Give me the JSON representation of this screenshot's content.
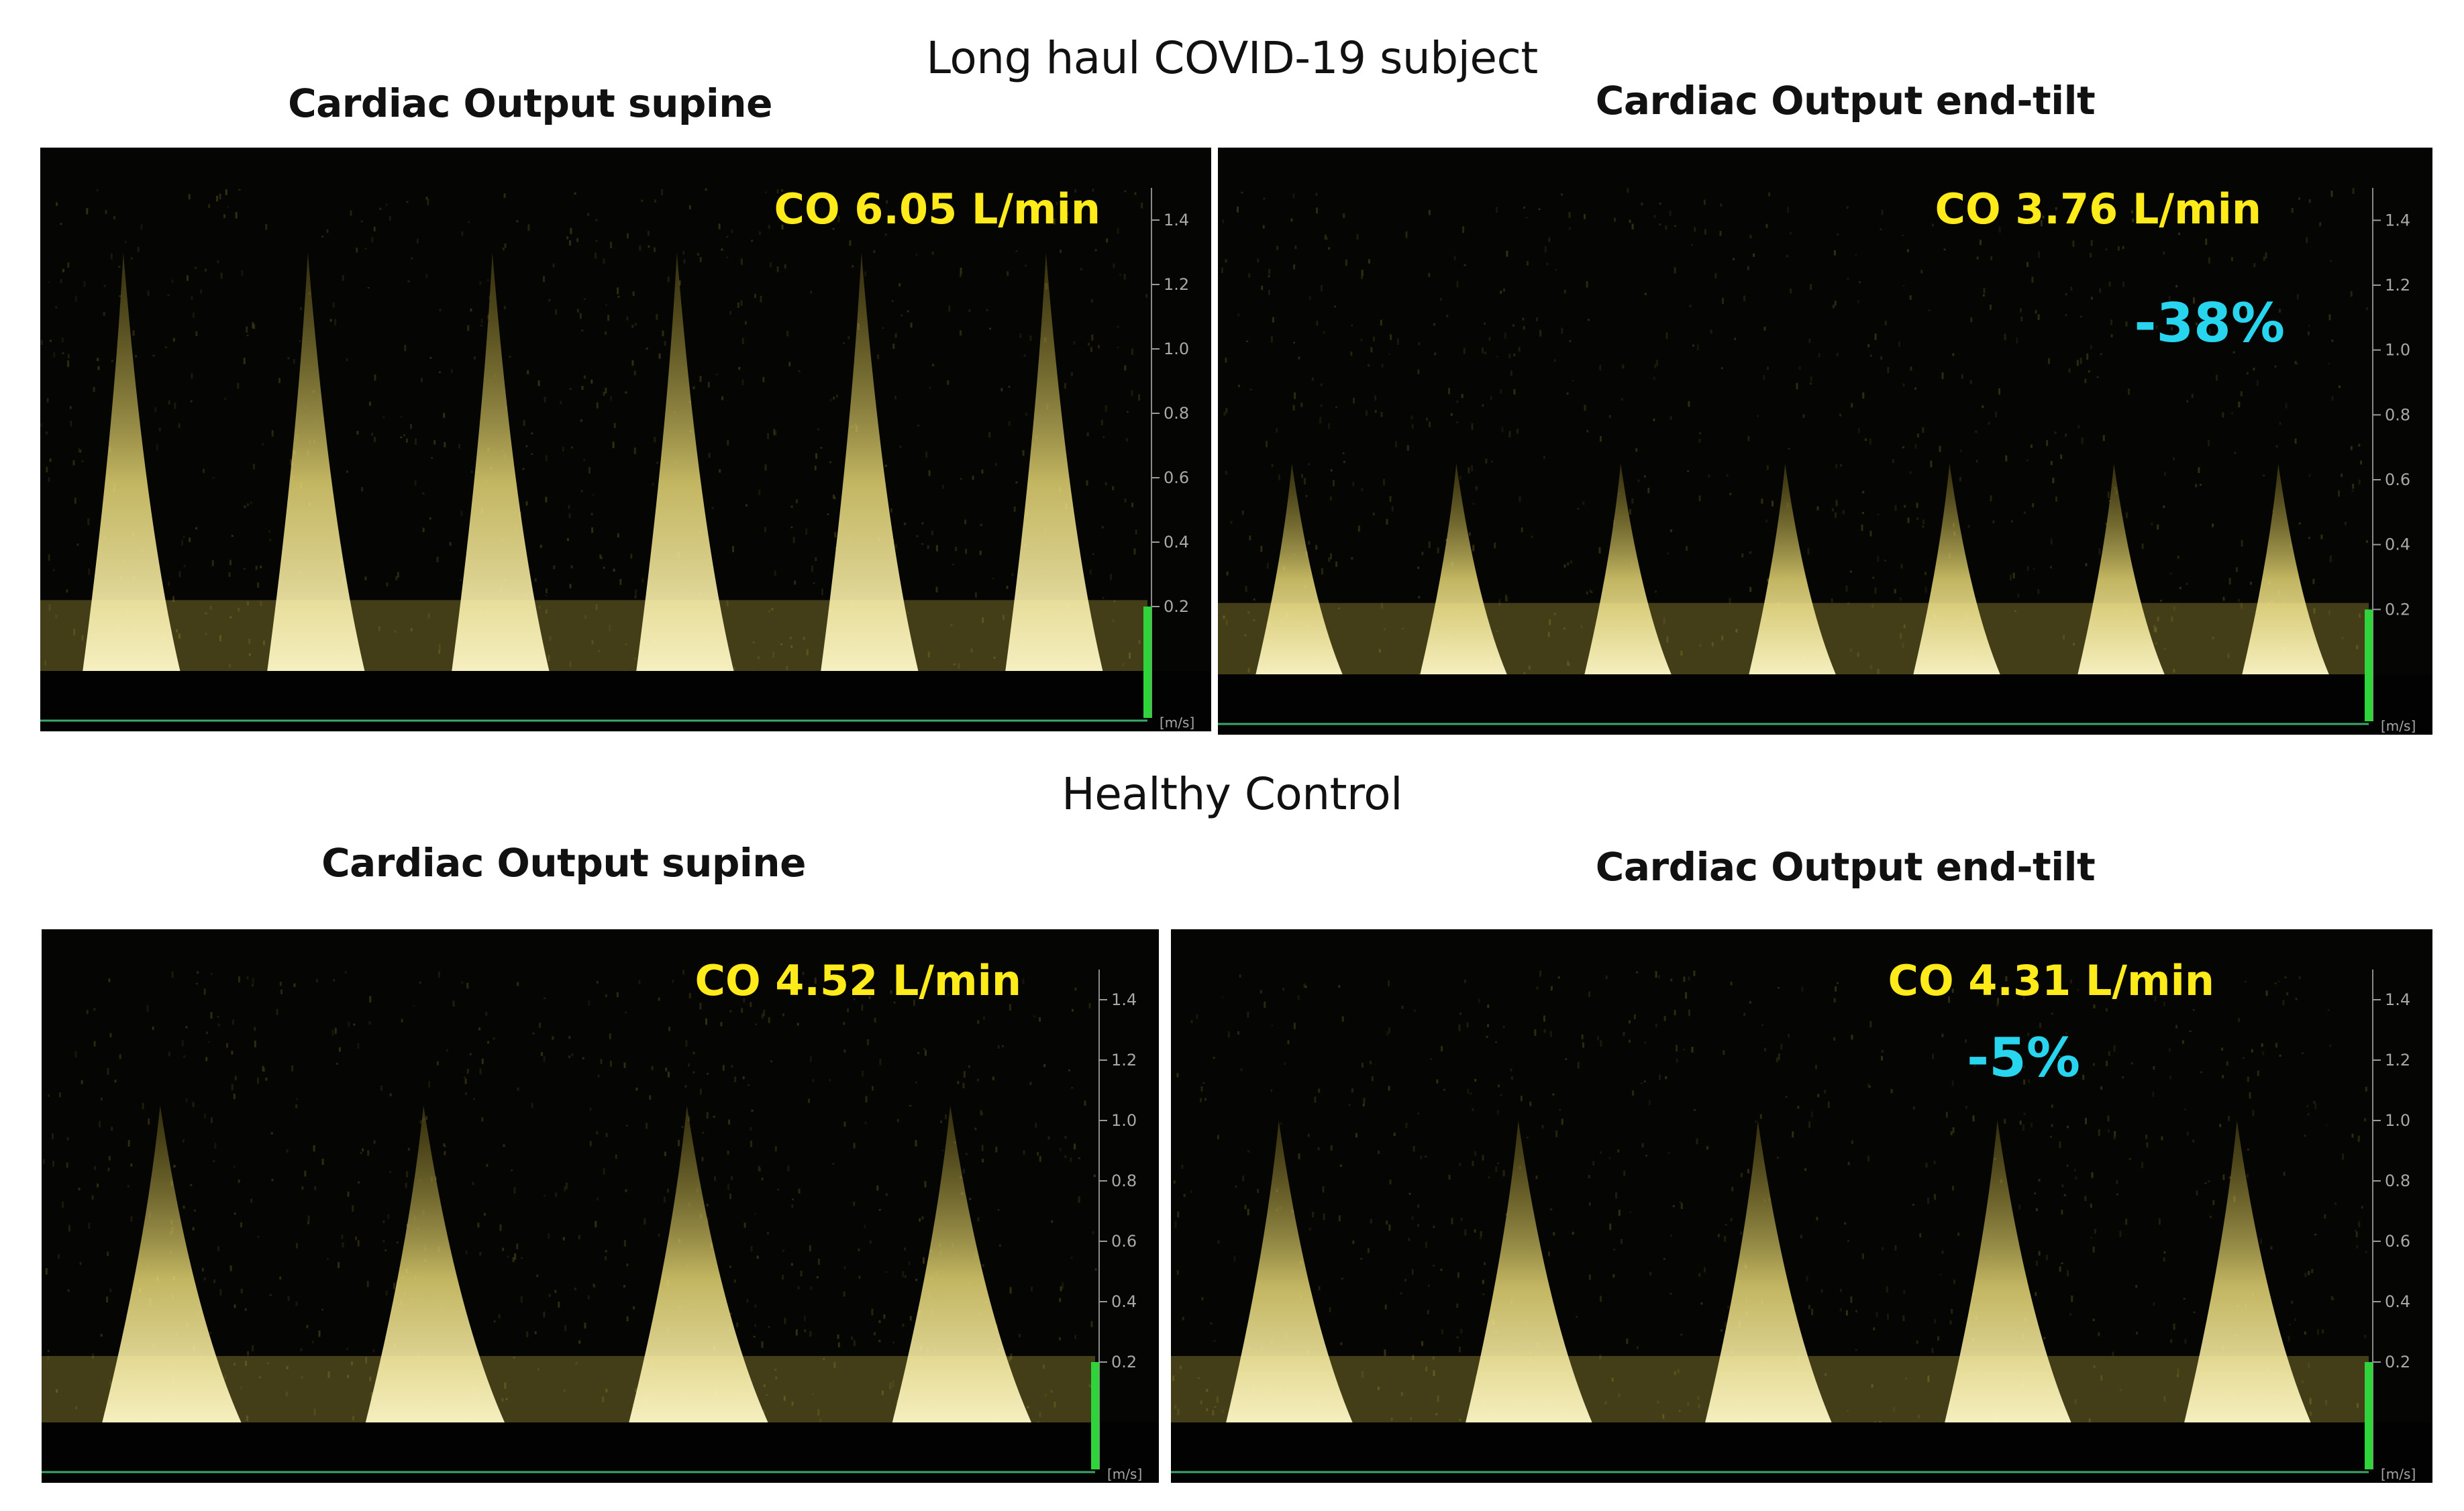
{
  "titles": {
    "covid": "Long haul COVID-19 subject",
    "control": "Healthy Control"
  },
  "panels": [
    {
      "id": "covid-supine",
      "heading": "Cardiac Output supine",
      "co": "CO 6.05 L/min",
      "change": "",
      "peak_velocity": 1.3,
      "beats": 6
    },
    {
      "id": "covid-tilt",
      "heading": "Cardiac Output end-tilt",
      "co": "CO 3.76 L/min",
      "change": "-38%",
      "peak_velocity": 0.65,
      "beats": 7
    },
    {
      "id": "control-supine",
      "heading": "Cardiac Output supine",
      "co": "CO 4.52 L/min",
      "change": "",
      "peak_velocity": 1.05,
      "beats": 4
    },
    {
      "id": "control-tilt",
      "heading": "Cardiac Output end-tilt",
      "co": "CO 4.31 L/min",
      "change": "-5%",
      "peak_velocity": 1.0,
      "beats": 5
    }
  ],
  "axis": {
    "ticks": [
      "1.4",
      "1.2",
      "1.0",
      "0.8",
      "0.6",
      "0.4",
      "0.2"
    ],
    "unit": "[m/s]"
  },
  "colors": {
    "doppler": "#f2e27a",
    "co_text": "#ffea1a",
    "change_text": "#27d6ee",
    "marker": "#2fd33a"
  }
}
